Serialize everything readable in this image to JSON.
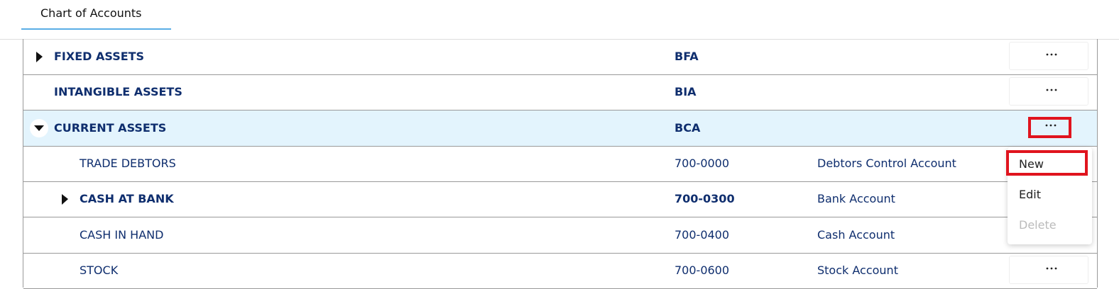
{
  "tab": {
    "label": "Chart of Accounts"
  },
  "rows": [
    {
      "name": "FIXED ASSETS",
      "code": "BFA",
      "level": 0,
      "bold": true,
      "expander": "collapsed"
    },
    {
      "name": "INTANGIBLE ASSETS",
      "code": "BIA",
      "level": 0,
      "bold": true
    },
    {
      "name": "CURRENT ASSETS",
      "code": "BCA",
      "level": 0,
      "bold": true,
      "expander": "expanded",
      "selected": true
    },
    {
      "name": "TRADE DEBTORS",
      "code": "700-0000",
      "type": "Debtors Control Account",
      "level": 1,
      "bold": false
    },
    {
      "name": "CASH AT BANK",
      "code": "700-0300",
      "type": "Bank Account",
      "level": 1,
      "bold": true,
      "expander": "collapsed"
    },
    {
      "name": "CASH IN HAND",
      "code": "700-0400",
      "type": "Cash Account",
      "level": 1,
      "bold": false
    },
    {
      "name": "STOCK",
      "code": "700-0600",
      "type": "Stock Account",
      "level": 1,
      "bold": false
    }
  ],
  "menu": {
    "items": [
      {
        "label": "New",
        "highlighted": true,
        "enabled": true
      },
      {
        "label": "Edit",
        "enabled": true
      },
      {
        "label": "Delete",
        "enabled": false
      }
    ]
  }
}
